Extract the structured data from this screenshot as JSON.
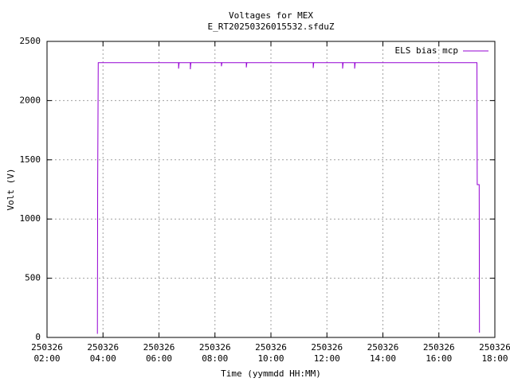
{
  "chart_data": {
    "type": "line",
    "title": "Voltages for MEX",
    "subtitle": "E_RT20250326015532.sfduZ",
    "x_label": "Time (yymmdd HH:MM)",
    "y_label": "Volt (V)",
    "xlim": [
      2,
      18
    ],
    "xticks": [
      {
        "value": 2,
        "label": "250326\n02:00"
      },
      {
        "value": 4,
        "label": "250326\n04:00"
      },
      {
        "value": 6,
        "label": "250326\n06:00"
      },
      {
        "value": 8,
        "label": "250326\n08:00"
      },
      {
        "value": 10,
        "label": "250326\n10:00"
      },
      {
        "value": 12,
        "label": "250326\n12:00"
      },
      {
        "value": 14,
        "label": "250326\n14:00"
      },
      {
        "value": 16,
        "label": "250326\n16:00"
      },
      {
        "value": 18,
        "label": "250326\n18:00"
      }
    ],
    "ylim": [
      0,
      2500
    ],
    "yticks": [
      0,
      500,
      1000,
      1500,
      2000,
      2500
    ],
    "grid": true,
    "legend": "top-right",
    "x": [
      3.8,
      3.81,
      3.83,
      6.7,
      6.7,
      6.72,
      7.12,
      7.12,
      7.14,
      8.23,
      8.23,
      8.25,
      9.12,
      9.12,
      9.14,
      11.51,
      11.51,
      11.53,
      12.56,
      12.56,
      12.58,
      12.99,
      12.99,
      13.01,
      17.36,
      17.37,
      17.44,
      17.45
    ],
    "series": [
      {
        "name": "ELS bias mcp",
        "color": "#9400d3",
        "values": [
          30,
          1280,
          2320,
          2320,
          2270,
          2320,
          2320,
          2265,
          2320,
          2320,
          2290,
          2320,
          2320,
          2280,
          2320,
          2320,
          2275,
          2320,
          2320,
          2270,
          2320,
          2320,
          2270,
          2320,
          2320,
          1290,
          1290,
          40
        ]
      }
    ]
  }
}
